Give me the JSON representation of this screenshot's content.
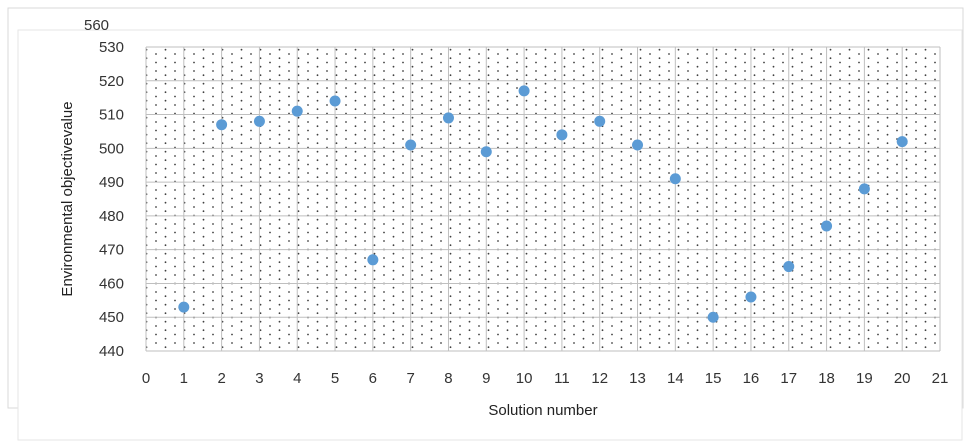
{
  "chart_data": {
    "type": "scatter",
    "title": "",
    "xlabel": "Solution number",
    "ylabel": "Environmental objectivevalue",
    "xlim": [
      0,
      21
    ],
    "ylim": [
      440,
      530
    ],
    "xticks": [
      0,
      1,
      2,
      3,
      4,
      5,
      6,
      7,
      8,
      9,
      10,
      11,
      12,
      13,
      14,
      15,
      16,
      17,
      18,
      19,
      20,
      21
    ],
    "yticks": [
      440,
      450,
      460,
      470,
      480,
      490,
      500,
      510,
      520,
      530
    ],
    "partially_hidden_tick": "560",
    "grid": true,
    "grid_pattern": "dotted",
    "legend": "none",
    "series": [
      {
        "x": [
          1,
          2,
          3,
          4,
          5,
          6,
          7,
          8,
          9,
          10,
          11,
          12,
          13,
          14,
          15,
          16,
          17,
          18,
          19,
          20
        ],
        "y": [
          453,
          507,
          508,
          511,
          514,
          467,
          501,
          509,
          499,
          517,
          504,
          508,
          501,
          491,
          450,
          456,
          465,
          477,
          488,
          502
        ]
      }
    ],
    "colors": {
      "marker": "#5b9bd5",
      "gridline": "#bfbfbf",
      "dot_pattern": "#404040",
      "frame": "#d9d9d9"
    }
  }
}
